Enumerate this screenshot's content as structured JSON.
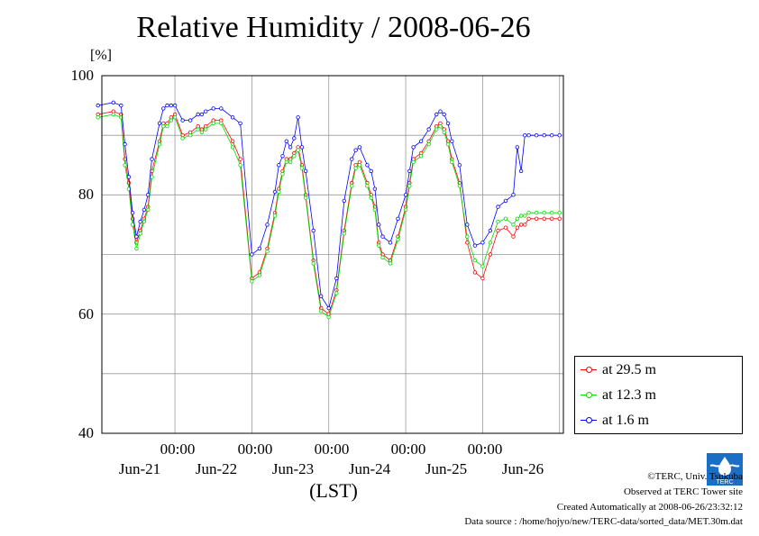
{
  "chart_data": {
    "type": "line",
    "title": "Relative Humidity / 2008-06-26",
    "ylabel": "[%]",
    "xlabel": "(LST)",
    "ylim": [
      40,
      100
    ],
    "yticks": [
      "100",
      "80",
      "60",
      "40"
    ],
    "xlim": [
      -0.95,
      5.05
    ],
    "x_time_labels": [
      "00:00",
      "00:00",
      "00:00",
      "00:00",
      "00:00"
    ],
    "x_date_labels": [
      "Jun-21",
      "Jun-22",
      "Jun-23",
      "Jun-24",
      "Jun-25",
      "Jun-26"
    ],
    "grid": true,
    "legend_position": "bottom-right outside",
    "series": [
      {
        "name": "at 29.5 m",
        "color": "#ff0000",
        "x": [
          -1.0,
          -0.8,
          -0.7,
          -0.65,
          -0.6,
          -0.55,
          -0.5,
          -0.45,
          -0.4,
          -0.35,
          -0.3,
          -0.2,
          -0.15,
          -0.1,
          -0.05,
          0.0,
          0.1,
          0.2,
          0.3,
          0.35,
          0.4,
          0.5,
          0.6,
          0.75,
          0.85,
          1.0,
          1.1,
          1.2,
          1.3,
          1.35,
          1.4,
          1.45,
          1.5,
          1.55,
          1.6,
          1.65,
          1.7,
          1.8,
          1.9,
          2.0,
          2.1,
          2.2,
          2.3,
          2.35,
          2.4,
          2.5,
          2.55,
          2.6,
          2.65,
          2.7,
          2.8,
          2.9,
          3.0,
          3.05,
          3.1,
          3.2,
          3.3,
          3.4,
          3.45,
          3.5,
          3.55,
          3.6,
          3.7,
          3.8,
          3.9,
          4.0,
          4.1,
          4.2,
          4.3,
          4.4,
          4.45,
          4.5,
          4.55,
          4.6,
          4.7,
          4.8,
          4.9,
          5.0
        ],
        "values": [
          93.5,
          94.0,
          93.5,
          86.0,
          82.0,
          76.0,
          72.0,
          74.0,
          76.0,
          78.0,
          84.0,
          89.0,
          92.0,
          92.0,
          93.0,
          93.5,
          90.0,
          90.5,
          91.5,
          91.0,
          91.5,
          92.5,
          92.5,
          89.0,
          86.0,
          66.0,
          67.0,
          71.0,
          77.0,
          81.0,
          84.0,
          86.0,
          86.0,
          87.0,
          88.0,
          85.0,
          80.0,
          69.0,
          61.0,
          60.0,
          64.0,
          74.0,
          82.0,
          85.0,
          85.5,
          82.0,
          80.0,
          78.0,
          72.0,
          70.0,
          69.0,
          73.0,
          78.0,
          82.0,
          86.0,
          87.0,
          89.0,
          91.5,
          92.0,
          91.0,
          89.0,
          86.0,
          82.0,
          72.0,
          67.0,
          66.0,
          70.0,
          74.0,
          74.5,
          73.0,
          74.5,
          75.0,
          75.0,
          76.0,
          76.0,
          76.0,
          76.0,
          76.0
        ]
      },
      {
        "name": "at 12.3 m",
        "color": "#00dd00",
        "x": [
          -1.0,
          -0.8,
          -0.7,
          -0.65,
          -0.6,
          -0.55,
          -0.5,
          -0.45,
          -0.4,
          -0.35,
          -0.3,
          -0.2,
          -0.15,
          -0.1,
          -0.05,
          0.0,
          0.1,
          0.2,
          0.3,
          0.35,
          0.4,
          0.5,
          0.6,
          0.75,
          0.85,
          1.0,
          1.1,
          1.2,
          1.3,
          1.35,
          1.4,
          1.45,
          1.5,
          1.55,
          1.6,
          1.65,
          1.7,
          1.8,
          1.9,
          2.0,
          2.1,
          2.2,
          2.3,
          2.35,
          2.4,
          2.5,
          2.55,
          2.6,
          2.65,
          2.7,
          2.8,
          2.9,
          3.0,
          3.05,
          3.1,
          3.2,
          3.3,
          3.4,
          3.45,
          3.5,
          3.55,
          3.6,
          3.7,
          3.8,
          3.9,
          4.0,
          4.1,
          4.2,
          4.3,
          4.4,
          4.45,
          4.5,
          4.55,
          4.6,
          4.7,
          4.8,
          4.9,
          5.0
        ],
        "values": [
          93.0,
          93.5,
          93.0,
          85.0,
          81.0,
          75.0,
          71.0,
          73.5,
          75.5,
          77.5,
          83.0,
          88.5,
          91.5,
          91.5,
          92.5,
          93.0,
          89.5,
          90.0,
          91.0,
          90.5,
          91.0,
          92.0,
          92.0,
          88.0,
          85.0,
          65.5,
          66.5,
          70.5,
          76.5,
          80.5,
          83.5,
          85.5,
          85.5,
          86.5,
          87.5,
          84.5,
          79.5,
          68.5,
          60.5,
          59.5,
          63.5,
          73.5,
          81.5,
          84.5,
          85.0,
          81.5,
          79.5,
          77.5,
          71.5,
          69.5,
          68.5,
          72.5,
          77.5,
          81.5,
          85.5,
          86.5,
          88.5,
          91.0,
          91.5,
          90.5,
          88.5,
          85.5,
          81.5,
          73.0,
          69.0,
          68.0,
          72.0,
          75.5,
          76.0,
          75.0,
          76.0,
          76.5,
          76.5,
          77.0,
          77.0,
          77.0,
          77.0,
          77.0
        ]
      },
      {
        "name": "at 1.6 m",
        "color": "#0000ff",
        "x": [
          -1.0,
          -0.8,
          -0.7,
          -0.65,
          -0.6,
          -0.55,
          -0.5,
          -0.45,
          -0.4,
          -0.35,
          -0.3,
          -0.2,
          -0.15,
          -0.1,
          -0.05,
          0.0,
          0.1,
          0.2,
          0.3,
          0.35,
          0.4,
          0.5,
          0.6,
          0.75,
          0.85,
          1.0,
          1.1,
          1.2,
          1.3,
          1.35,
          1.4,
          1.45,
          1.5,
          1.55,
          1.6,
          1.65,
          1.7,
          1.8,
          1.9,
          2.0,
          2.1,
          2.2,
          2.3,
          2.35,
          2.4,
          2.5,
          2.55,
          2.6,
          2.65,
          2.7,
          2.8,
          2.9,
          3.0,
          3.05,
          3.1,
          3.2,
          3.3,
          3.4,
          3.45,
          3.5,
          3.55,
          3.6,
          3.7,
          3.8,
          3.9,
          4.0,
          4.1,
          4.2,
          4.3,
          4.4,
          4.45,
          4.5,
          4.55,
          4.6,
          4.7,
          4.8,
          4.9,
          5.0
        ],
        "values": [
          95.0,
          95.5,
          95.0,
          88.5,
          83.0,
          77.0,
          73.0,
          75.5,
          77.5,
          80.0,
          86.0,
          92.0,
          94.5,
          95.0,
          95.0,
          95.0,
          92.5,
          92.5,
          93.5,
          93.5,
          94.0,
          94.5,
          94.5,
          93.0,
          92.0,
          70.0,
          71.0,
          75.0,
          80.5,
          85.0,
          86.5,
          89.0,
          88.0,
          89.5,
          93.0,
          88.0,
          84.0,
          74.0,
          63.0,
          61.0,
          66.0,
          79.0,
          86.0,
          87.5,
          88.0,
          85.0,
          84.0,
          81.0,
          75.0,
          73.0,
          72.0,
          76.0,
          80.0,
          84.0,
          88.0,
          89.0,
          91.0,
          93.5,
          94.0,
          93.5,
          92.0,
          89.0,
          85.0,
          75.0,
          71.5,
          72.0,
          74.0,
          78.0,
          79.0,
          80.0,
          88.0,
          84.0,
          90.0,
          90.0,
          90.0,
          90.0,
          90.0,
          90.0
        ]
      }
    ]
  },
  "footer": {
    "copyright": "©TERC, Univ. Tsukuba",
    "observed": "Observed at TERC Tower site",
    "created": "Created Automatically at 2008-06-26/23:32:12",
    "source": "Data source : /home/hojyo/new/TERC-data/sorted_data/MET.30m.dat",
    "logo_text": "TERC"
  }
}
